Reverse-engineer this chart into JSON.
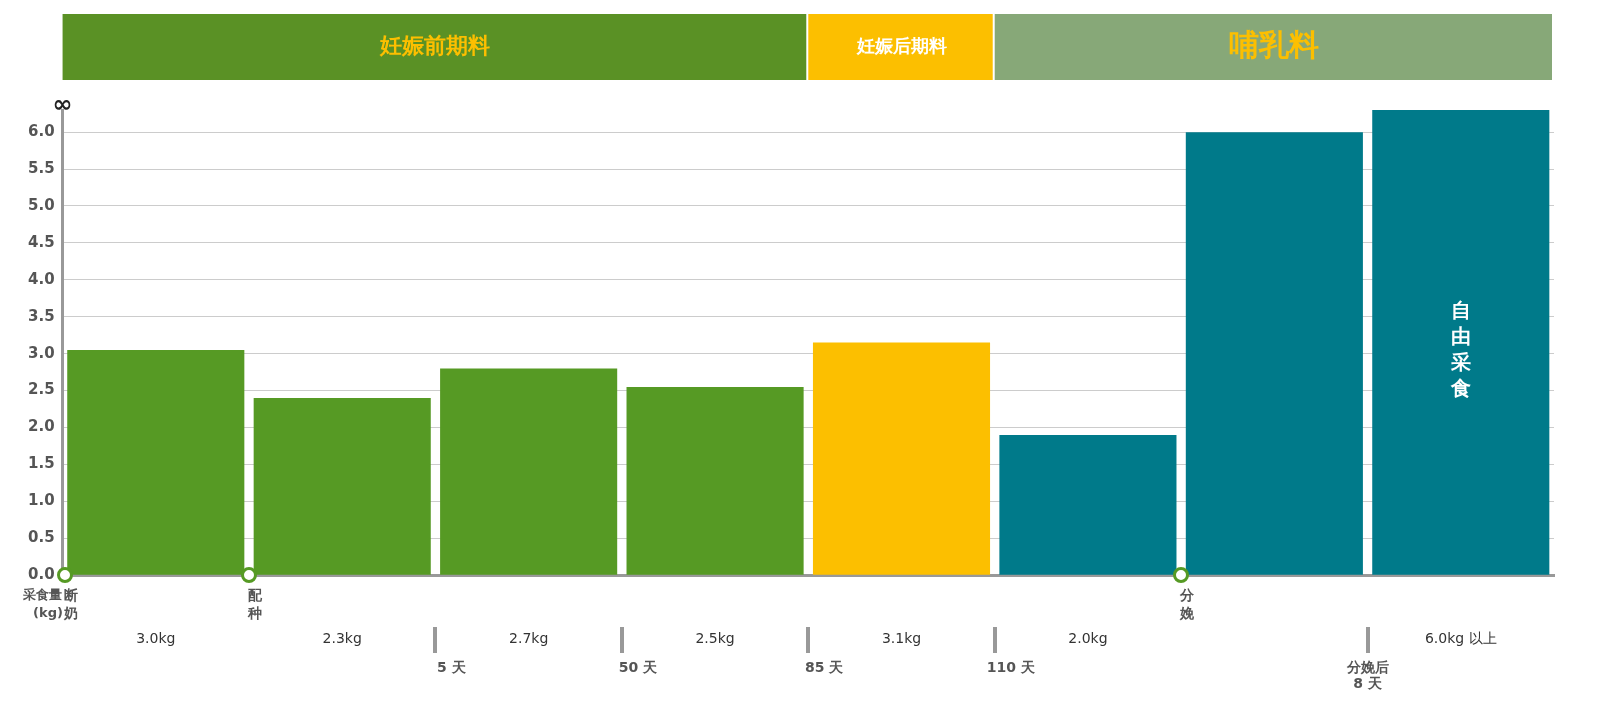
{
  "chart_data": {
    "type": "bar",
    "ylabel": "采食量 (kg)",
    "categories": [
      "3.0kg",
      "2.3kg",
      "2.7kg",
      "2.5kg",
      "3.1kg",
      "2.0kg",
      null,
      "6.0kg 以上"
    ],
    "values": [
      3.05,
      2.4,
      2.8,
      2.55,
      3.15,
      1.9,
      6.0,
      6.3
    ],
    "colors": [
      "#569a24",
      "#569a24",
      "#569a24",
      "#569a24",
      "#fcbf00",
      "#007a8a",
      "#007a8a",
      "#007a8a"
    ],
    "ylim": [
      0,
      6.3
    ],
    "yticks": [
      {
        "value": 0,
        "label": "0.0"
      },
      0.5,
      {
        "value": 1,
        "label": "1.0"
      },
      1.5,
      {
        "value": 2,
        "label": "2.0"
      },
      2.5,
      {
        "value": 3,
        "label": "3.0"
      },
      3.5,
      {
        "value": 4,
        "label": "4.0"
      },
      4.5,
      {
        "value": 5,
        "label": "5.0"
      },
      5.5,
      {
        "value": 6,
        "label": "6.0"
      }
    ],
    "grid": "y",
    "annotations": [
      "妊娠前期料",
      "妊娠后期料",
      "哺乳料",
      "断奶",
      "配种",
      "分娩",
      "5 天",
      "50 天",
      "85 天",
      "110 天",
      "分娩后 8 天",
      "自由采食",
      "∞"
    ]
  }
}
